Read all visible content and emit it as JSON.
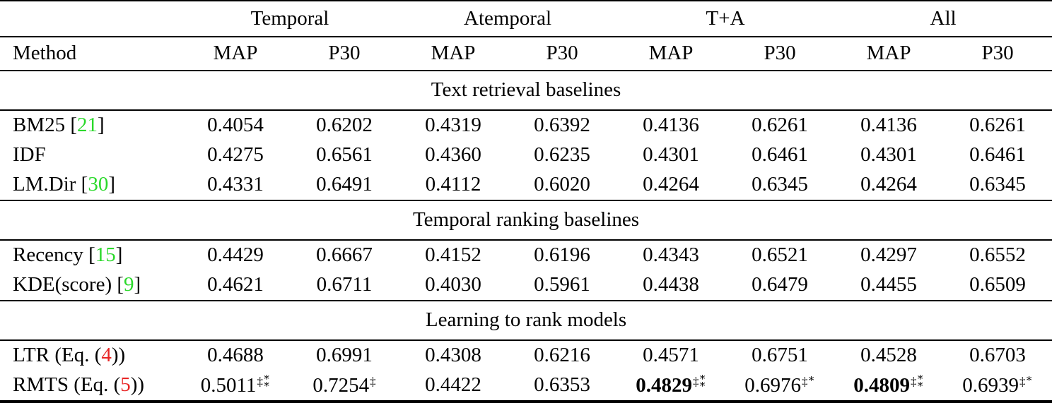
{
  "colors": {
    "citation_green": "#2bd92b",
    "equation_red": "#e82525",
    "text_black": "#000000"
  },
  "table": {
    "group_headers": [
      "Temporal",
      "Atemporal",
      "T+A",
      "All"
    ],
    "sub_headers": [
      "Method",
      "MAP",
      "P30",
      "MAP",
      "P30",
      "MAP",
      "P30",
      "MAP",
      "P30"
    ],
    "sections": [
      {
        "title": "Text retrieval baselines",
        "rows": [
          {
            "method": [
              {
                "text": "BM25 ["
              },
              {
                "text": "21",
                "color": "green"
              },
              {
                "text": "]"
              }
            ],
            "cells": [
              "0.4054",
              "0.6202",
              "0.4319",
              "0.6392",
              "0.4136",
              "0.6261",
              "0.4136",
              "0.6261"
            ]
          },
          {
            "method": [
              {
                "text": "IDF"
              }
            ],
            "cells": [
              "0.4275",
              "0.6561",
              "0.4360",
              "0.6235",
              "0.4301",
              "0.6461",
              "0.4301",
              "0.6461"
            ]
          },
          {
            "method": [
              {
                "text": "LM.Dir ["
              },
              {
                "text": "30",
                "color": "green"
              },
              {
                "text": "]"
              }
            ],
            "cells": [
              "0.4331",
              "0.6491",
              "0.4112",
              "0.6020",
              "0.4264",
              "0.6345",
              "0.4264",
              "0.6345"
            ]
          }
        ]
      },
      {
        "title": "Temporal ranking baselines",
        "rows": [
          {
            "method": [
              {
                "text": "Recency ["
              },
              {
                "text": "15",
                "color": "green"
              },
              {
                "text": "]"
              }
            ],
            "cells": [
              "0.4429",
              "0.6667",
              "0.4152",
              "0.6196",
              "0.4343",
              "0.6521",
              "0.4297",
              "0.6552"
            ]
          },
          {
            "method": [
              {
                "text": "KDE(score) ["
              },
              {
                "text": "9",
                "color": "green"
              },
              {
                "text": "]"
              }
            ],
            "cells": [
              "0.4621",
              "0.6711",
              "0.4030",
              "0.5961",
              "0.4438",
              "0.6479",
              "0.4455",
              "0.6509"
            ]
          }
        ]
      },
      {
        "title": "Learning to rank models",
        "rows": [
          {
            "method": [
              {
                "text": "LTR (Eq. ("
              },
              {
                "text": "4",
                "color": "red"
              },
              {
                "text": "))"
              }
            ],
            "cells": [
              "0.4688",
              "0.6991",
              "0.4308",
              "0.6216",
              "0.4571",
              "0.6751",
              "0.4528",
              "0.6703"
            ]
          },
          {
            "method": [
              {
                "text": "RMTS (Eq. ("
              },
              {
                "text": "5",
                "color": "red"
              },
              {
                "text": "))"
              }
            ],
            "cells": [
              {
                "v": "0.5011",
                "sup": "‡**"
              },
              {
                "v": "0.7254",
                "sup": "‡"
              },
              "0.4422",
              "0.6353",
              {
                "v": "0.4829",
                "bold": true,
                "sup": "‡**"
              },
              {
                "v": "0.6976",
                "sup": "‡*"
              },
              {
                "v": "0.4809",
                "bold": true,
                "sup": "‡**"
              },
              {
                "v": "0.6939",
                "sup": "‡*"
              }
            ]
          }
        ]
      }
    ]
  }
}
